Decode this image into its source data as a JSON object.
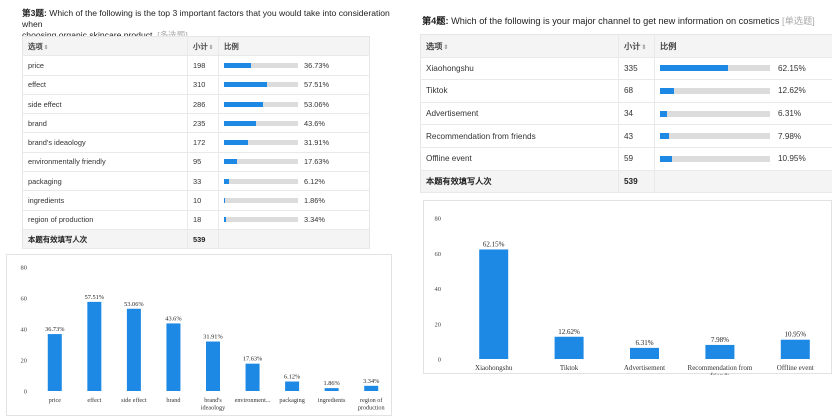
{
  "q3": {
    "num": "第3题:",
    "text_line1": "Which of the following is the top 3 important factors that you would take into consideration when",
    "text_line2": "choosing organic skincare product.",
    "tag": "[多选题]",
    "columns": {
      "option": "选项",
      "count": "小计",
      "ratio": "比例"
    },
    "rows": [
      {
        "option": "price",
        "count": "198",
        "pct": "36.73%",
        "value": 36.73
      },
      {
        "option": "effect",
        "count": "310",
        "pct": "57.51%",
        "value": 57.51
      },
      {
        "option": "side effect",
        "count": "286",
        "pct": "53.06%",
        "value": 53.06
      },
      {
        "option": "brand",
        "count": "235",
        "pct": "43.6%",
        "value": 43.6
      },
      {
        "option": "brand's ideaology",
        "count": "172",
        "pct": "31.91%",
        "value": 31.91
      },
      {
        "option": "environmentally friendly",
        "count": "95",
        "pct": "17.63%",
        "value": 17.63
      },
      {
        "option": "packaging",
        "count": "33",
        "pct": "6.12%",
        "value": 6.12
      },
      {
        "option": "ingredients",
        "count": "10",
        "pct": "1.86%",
        "value": 1.86
      },
      {
        "option": "region of production",
        "count": "18",
        "pct": "3.34%",
        "value": 3.34
      }
    ],
    "total_label": "本题有效填写人次",
    "total": "539"
  },
  "q4": {
    "num": "第4题:",
    "text": "Which of the following is your major channel to get new information on cosmetics",
    "tag": "[单选题]",
    "columns": {
      "option": "选项",
      "count": "小计",
      "ratio": "比例"
    },
    "rows": [
      {
        "option": "Xiaohongshu",
        "count": "335",
        "pct": "62.15%",
        "value": 62.15
      },
      {
        "option": "Tiktok",
        "count": "68",
        "pct": "12.62%",
        "value": 12.62
      },
      {
        "option": "Advertisement",
        "count": "34",
        "pct": "6.31%",
        "value": 6.31
      },
      {
        "option": "Recommendation from friends",
        "count": "43",
        "pct": "7.98%",
        "value": 7.98
      },
      {
        "option": "Offline event",
        "count": "59",
        "pct": "10.95%",
        "value": 10.95
      }
    ],
    "total_label": "本题有效填写人次",
    "total": "539"
  },
  "colors": {
    "bar": "#1e88e5",
    "track": "#dcdcdc"
  },
  "chart_data": [
    {
      "type": "bar",
      "categories": [
        "price",
        "effect",
        "side effect",
        "brand",
        "brand's ideaology",
        "environment...",
        "packaging",
        "ingredients",
        "region of production"
      ],
      "category_lines": [
        [
          "price"
        ],
        [
          "effect"
        ],
        [
          "side effect"
        ],
        [
          "brand"
        ],
        [
          "brand's",
          "ideaology"
        ],
        [
          "environment..."
        ],
        [
          "packaging"
        ],
        [
          "ingredients"
        ],
        [
          "region of",
          "production"
        ]
      ],
      "values": [
        36.73,
        57.51,
        53.06,
        43.6,
        31.91,
        17.63,
        6.12,
        1.86,
        3.34
      ],
      "labels": [
        "36.73%",
        "57.51%",
        "53.06%",
        "43.6%",
        "31.91%",
        "17.63%",
        "6.12%",
        "1.86%",
        "3.34%"
      ],
      "yticks": [
        "0",
        "20",
        "40",
        "60",
        "80"
      ],
      "ylim": [
        0,
        80
      ],
      "grid": false,
      "color": "#1e88e5"
    },
    {
      "type": "bar",
      "categories": [
        "Xiaohongshu",
        "Tiktok",
        "Advertisement",
        "Recommendation from friends",
        "Offline event"
      ],
      "category_lines": [
        [
          "Xiaohongshu"
        ],
        [
          "Tiktok"
        ],
        [
          "Advertisement"
        ],
        [
          "Recommendation from",
          "friends"
        ],
        [
          "Offline event"
        ]
      ],
      "values": [
        62.15,
        12.62,
        6.31,
        7.98,
        10.95
      ],
      "labels": [
        "62.15%",
        "12.62%",
        "6.31%",
        "7.98%",
        "10.95%"
      ],
      "yticks": [
        "0",
        "20",
        "40",
        "60",
        "80"
      ],
      "ylim": [
        0,
        80
      ],
      "grid": false,
      "color": "#1e88e5"
    }
  ]
}
